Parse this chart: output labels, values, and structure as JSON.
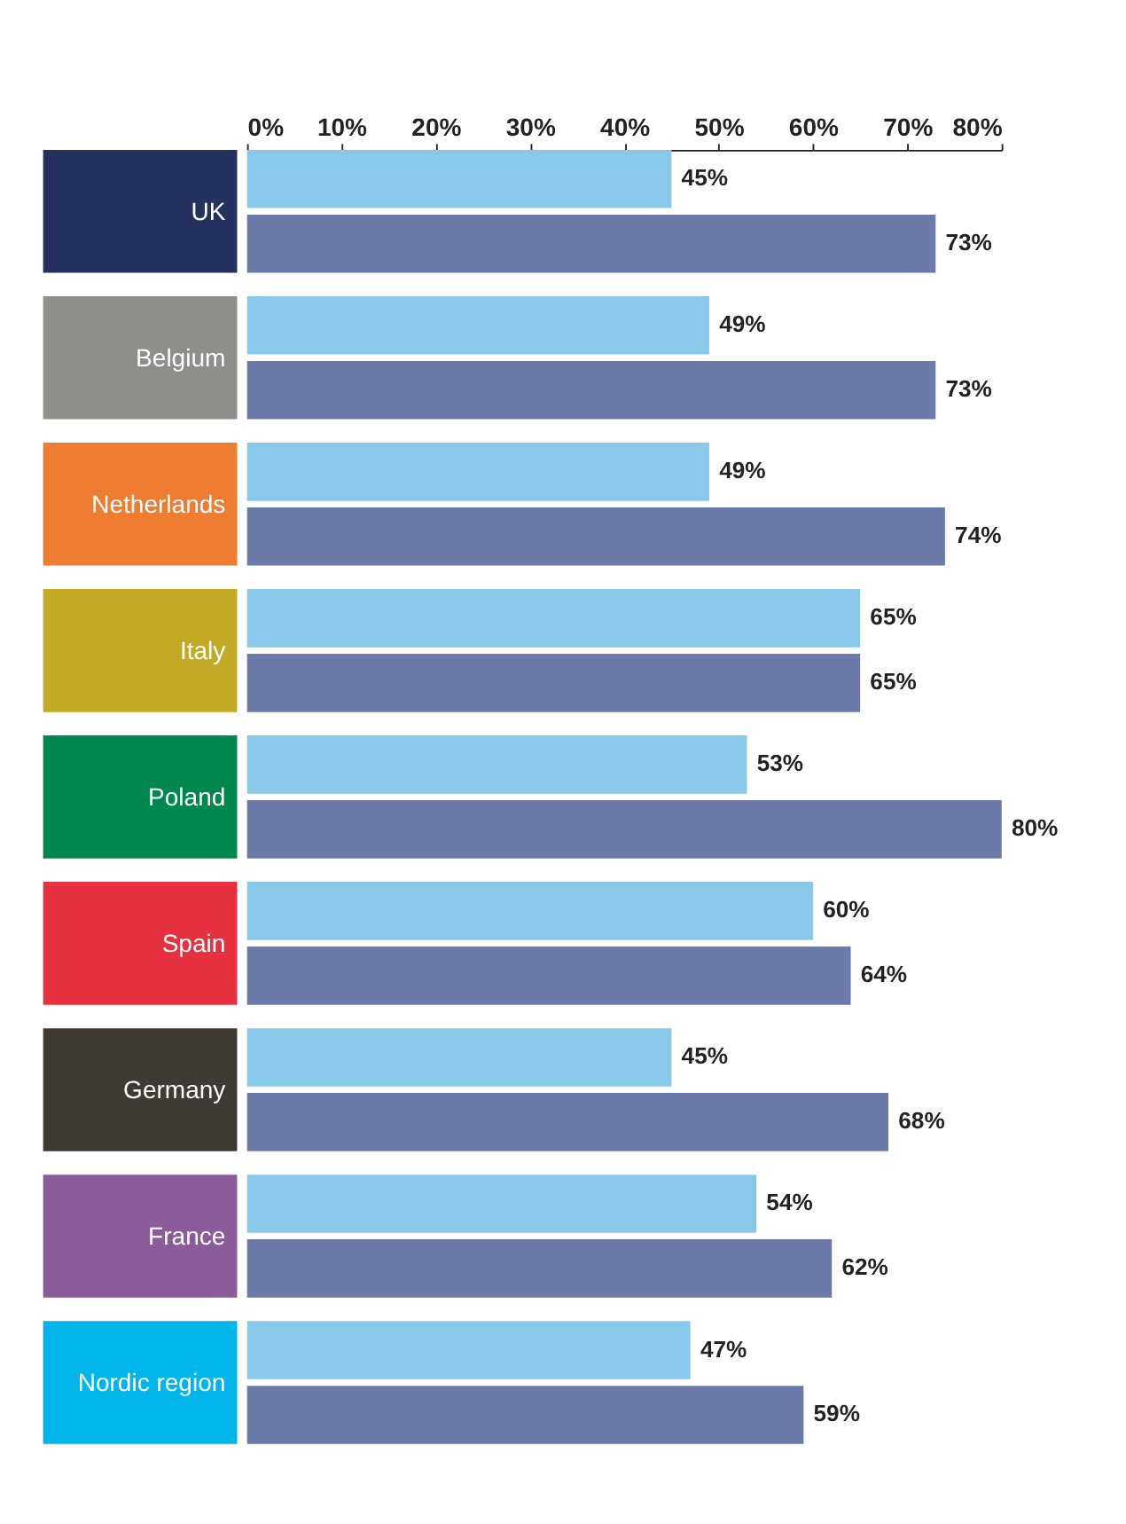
{
  "chart_data": {
    "type": "bar",
    "orientation": "horizontal",
    "categories": [
      "UK",
      "Belgium",
      "Netherlands",
      "Italy",
      "Poland",
      "Spain",
      "Germany",
      "France",
      "Nordic region"
    ],
    "series": [
      {
        "color": "#88c9ea",
        "values": [
          45,
          49,
          49,
          65,
          53,
          60,
          45,
          54,
          47
        ],
        "value_labels": [
          "45%",
          "49%",
          "49%",
          "65%",
          "53%",
          "60%",
          "45%",
          "54%",
          "47%"
        ]
      },
      {
        "color": "#6b7aa8",
        "values": [
          73,
          73,
          74,
          65,
          80,
          64,
          68,
          62,
          59
        ],
        "value_labels": [
          "73%",
          "73%",
          "74%",
          "65%",
          "80%",
          "64%",
          "68%",
          "62%",
          "59%"
        ]
      }
    ],
    "xlim": [
      0,
      80
    ],
    "xticks": [
      {
        "value": 0,
        "label": "0%"
      },
      {
        "value": 10,
        "label": "10%"
      },
      {
        "value": 20,
        "label": "20%"
      },
      {
        "value": 30,
        "label": "30%"
      },
      {
        "value": 40,
        "label": "40%"
      },
      {
        "value": 50,
        "label": "50%"
      },
      {
        "value": 60,
        "label": "60%"
      },
      {
        "value": 70,
        "label": "70%"
      },
      {
        "value": 80,
        "label": "80%"
      }
    ],
    "grid": false
  }
}
